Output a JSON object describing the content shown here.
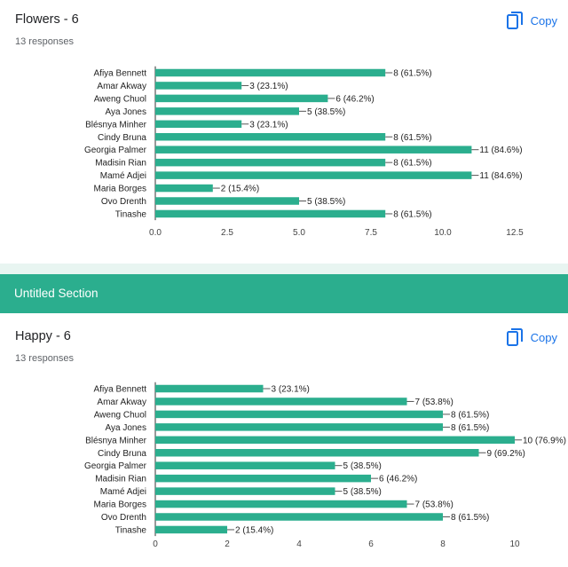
{
  "colors": {
    "bar": "#2bae8e",
    "accent": "#1a73e8",
    "section": "#2bae8e"
  },
  "section": {
    "title": "Untitled Section"
  },
  "charts": [
    {
      "title": "Flowers - 6",
      "responses": "13 responses",
      "copy_label": "Copy",
      "copy_icon": "copy-icon"
    },
    {
      "title": "Happy - 6",
      "responses": "13 responses",
      "copy_label": "Copy",
      "copy_icon": "copy-icon"
    }
  ],
  "chart_data": [
    {
      "type": "bar",
      "orientation": "horizontal",
      "title": "Flowers - 6",
      "categories": [
        "Afiya Bennett",
        "Amar Akway",
        "Aweng Chuol",
        "Aya Jones",
        "Blésnya Minher",
        "Cindy Bruna",
        "Georgia Palmer",
        "Madisin Rian",
        "Mamé Adjei",
        "Maria Borges",
        "Ovo Drenth",
        "Tinashe"
      ],
      "values": [
        8,
        3,
        6,
        5,
        3,
        8,
        11,
        8,
        11,
        2,
        5,
        8
      ],
      "value_labels": [
        "8 (61.5%)",
        "3 (23.1%)",
        "6 (46.2%)",
        "5 (38.5%)",
        "3 (23.1%)",
        "8 (61.5%)",
        "11 (84.6%)",
        "8 (61.5%)",
        "11 (84.6%)",
        "2 (15.4%)",
        "5 (38.5%)",
        "8 (61.5%)"
      ],
      "xlim": [
        0,
        12.5
      ],
      "xticks": [
        "0.0",
        "2.5",
        "5.0",
        "7.5",
        "10.0",
        "12.5"
      ],
      "grid": false
    },
    {
      "type": "bar",
      "orientation": "horizontal",
      "title": "Happy - 6",
      "categories": [
        "Afiya Bennett",
        "Amar Akway",
        "Aweng Chuol",
        "Aya Jones",
        "Blésnya Minher",
        "Cindy Bruna",
        "Georgia Palmer",
        "Madisin Rian",
        "Mamé Adjei",
        "Maria Borges",
        "Ovo Drenth",
        "Tinashe"
      ],
      "values": [
        3,
        7,
        8,
        8,
        10,
        9,
        5,
        6,
        5,
        7,
        8,
        2
      ],
      "value_labels": [
        "3 (23.1%)",
        "7 (53.8%)",
        "8 (61.5%)",
        "8 (61.5%)",
        "10 (76.9%)",
        "9 (69.2%)",
        "5 (38.5%)",
        "6 (46.2%)",
        "5 (38.5%)",
        "7 (53.8%)",
        "8 (61.5%)",
        "2 (15.4%)"
      ],
      "xlim": [
        0,
        10
      ],
      "xticks": [
        "0",
        "2",
        "4",
        "6",
        "8",
        "10"
      ],
      "grid": false
    }
  ]
}
